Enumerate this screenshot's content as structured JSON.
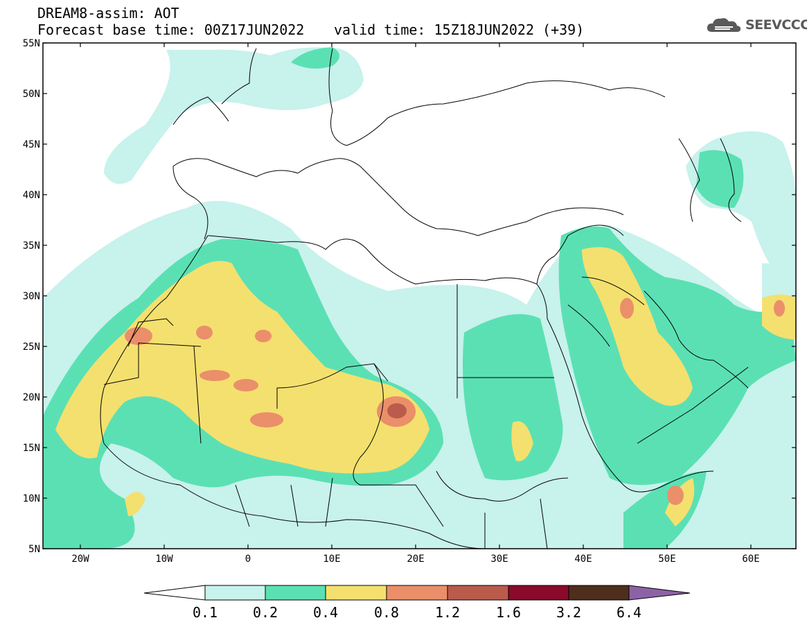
{
  "header": {
    "title": "DREAM8-assim: AOT",
    "base_time": "Forecast base time: 00Z17JUN2022",
    "valid_time": "valid time: 15Z18JUN2022 (+39)"
  },
  "logo": {
    "text": "SEEVCCC",
    "icon": "cloud-icon"
  },
  "map": {
    "lat_ticks": [
      "55N",
      "50N",
      "45N",
      "40N",
      "35N",
      "30N",
      "25N",
      "20N",
      "15N",
      "10N",
      "5N"
    ],
    "lon_ticks": [
      "20W",
      "10W",
      "0",
      "10E",
      "20E",
      "30E",
      "40E",
      "50E",
      "60E"
    ]
  },
  "colorbar": {
    "colors": [
      "#ffffff",
      "#c8f2ec",
      "#5be0b4",
      "#f4e06e",
      "#ea8f6a",
      "#ba5b4c",
      "#890a2a",
      "#4e2e1c",
      "#8c62a6"
    ],
    "labels": [
      "0.1",
      "0.2",
      "0.4",
      "0.8",
      "1.2",
      "1.6",
      "3.2",
      "6.4"
    ]
  }
}
